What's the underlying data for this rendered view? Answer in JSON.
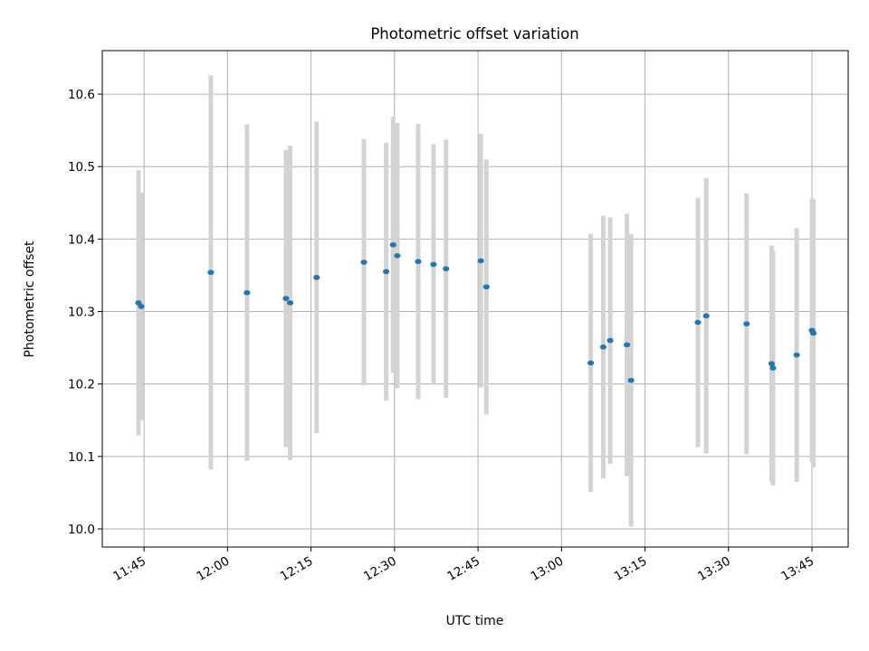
{
  "chart_data": {
    "type": "scatter",
    "title": "Photometric offset variation",
    "xlabel": "UTC time",
    "ylabel": "Photometric offset",
    "grid": true,
    "x_tick_labels": [
      "11:45",
      "12:00",
      "12:15",
      "12:30",
      "12:45",
      "13:00",
      "13:15",
      "13:30",
      "13:45"
    ],
    "y_tick_labels": [
      "10.0",
      "10.1",
      "10.2",
      "10.3",
      "10.4",
      "10.5",
      "10.6"
    ],
    "y_ticks": [
      10.0,
      10.1,
      10.2,
      10.3,
      10.4,
      10.5,
      10.6
    ],
    "xlim": [
      "11:37:30",
      "13:51:30"
    ],
    "ylim": [
      9.975,
      10.66
    ],
    "colors": {
      "marker": "#1f77b4",
      "errorbar": "#d3d3d3",
      "grid": "#b0b0b0"
    },
    "series": [
      {
        "points": [
          {
            "x": "11:44:00",
            "y": 10.312,
            "err": 0.183
          },
          {
            "x": "11:44:30",
            "y": 10.307,
            "err": 0.157
          },
          {
            "x": "11:57:00",
            "y": 10.354,
            "err": 0.272
          },
          {
            "x": "12:03:30",
            "y": 10.326,
            "err": 0.232
          },
          {
            "x": "12:10:30",
            "y": 10.318,
            "err": 0.205
          },
          {
            "x": "12:11:15",
            "y": 10.312,
            "err": 0.217
          },
          {
            "x": "12:16:00",
            "y": 10.347,
            "err": 0.215
          },
          {
            "x": "12:24:30",
            "y": 10.368,
            "err": 0.17
          },
          {
            "x": "12:28:30",
            "y": 10.355,
            "err": 0.178
          },
          {
            "x": "12:29:45",
            "y": 10.392,
            "err": 0.177
          },
          {
            "x": "12:30:30",
            "y": 10.377,
            "err": 0.183
          },
          {
            "x": "12:34:15",
            "y": 10.369,
            "err": 0.19
          },
          {
            "x": "12:37:00",
            "y": 10.365,
            "err": 0.166
          },
          {
            "x": "12:39:15",
            "y": 10.359,
            "err": 0.178
          },
          {
            "x": "12:45:30",
            "y": 10.37,
            "err": 0.175
          },
          {
            "x": "12:46:30",
            "y": 10.334,
            "err": 0.176
          },
          {
            "x": "13:05:15",
            "y": 10.229,
            "err": 0.178
          },
          {
            "x": "13:07:30",
            "y": 10.251,
            "err": 0.181
          },
          {
            "x": "13:08:45",
            "y": 10.26,
            "err": 0.17
          },
          {
            "x": "13:11:45",
            "y": 10.254,
            "err": 0.181
          },
          {
            "x": "13:12:30",
            "y": 10.205,
            "err": 0.202
          },
          {
            "x": "13:24:30",
            "y": 10.285,
            "err": 0.172
          },
          {
            "x": "13:26:00",
            "y": 10.294,
            "err": 0.19
          },
          {
            "x": "13:33:15",
            "y": 10.283,
            "err": 0.18
          },
          {
            "x": "13:37:45",
            "y": 10.228,
            "err": 0.163
          },
          {
            "x": "13:38:00",
            "y": 10.222,
            "err": 0.162
          },
          {
            "x": "13:42:15",
            "y": 10.24,
            "err": 0.175
          },
          {
            "x": "13:45:00",
            "y": 10.274,
            "err": 0.182
          },
          {
            "x": "13:45:15",
            "y": 10.27,
            "err": 0.185
          }
        ]
      }
    ]
  }
}
